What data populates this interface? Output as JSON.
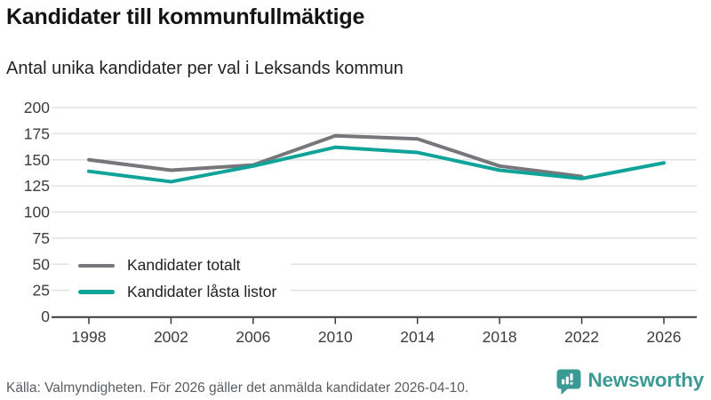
{
  "header": {
    "title": "Kandidater till kommunfullmäktige",
    "subtitle": "Antal unika kandidater per val i Leksands kommun"
  },
  "chart_data": {
    "type": "line",
    "x": [
      1998,
      2002,
      2006,
      2010,
      2014,
      2018,
      2022,
      2026
    ],
    "xlabel": "",
    "ylabel": "",
    "ylim": [
      0,
      200
    ],
    "ytick_step": 25,
    "grid": "horizontal",
    "legend_position": "inside-bottom-left",
    "series": [
      {
        "name": "Kandidater totalt",
        "color": "#76767b",
        "values": [
          150,
          140,
          145,
          173,
          170,
          144,
          134,
          null
        ]
      },
      {
        "name": "Kandidater låsta listor",
        "color": "#0fa39a",
        "values": [
          139,
          129,
          144,
          162,
          157,
          140,
          132,
          147
        ]
      }
    ]
  },
  "footer": {
    "source": "Källa: Valmyndigheten. För 2026 gäller det anmälda kandidater 2026-04-10."
  },
  "brand": {
    "name": "Newsworthy",
    "color": "#3b9a93"
  },
  "colors": {
    "gridline": "#e2e2e2",
    "axis": "#39393b",
    "tick_text": "#3d3d3e"
  }
}
